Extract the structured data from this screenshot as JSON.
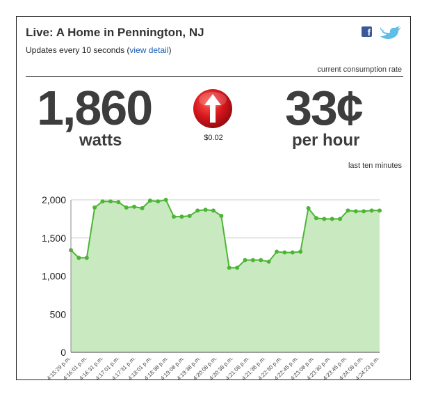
{
  "header": {
    "title": "Live: A Home in Pennington, NJ",
    "updates_prefix": "Updates every 10 seconds (",
    "view_detail_link": "view detail",
    "updates_suffix": ")",
    "facebook_glyph": "f",
    "facebook_icon": "facebook-icon",
    "twitter_icon": "twitter-bird-icon"
  },
  "readout": {
    "rate_label": "current consumption rate",
    "watts_value": "1,860",
    "watts_unit": "watts",
    "trend_icon": "up-arrow-icon",
    "trend_color": "#d4151c",
    "delta": "$0.02",
    "cost_value": "33¢",
    "cost_unit": "per hour"
  },
  "chart_label": "last ten minutes",
  "colors": {
    "line": "#4cb535",
    "fill": "#c9e9c0",
    "grid": "#cccccc",
    "link": "#1a5fb4"
  },
  "chart_data": {
    "type": "area",
    "title": "",
    "xlabel": "",
    "ylabel": "",
    "ylim": [
      0,
      2000
    ],
    "yticks": [
      "0",
      "500",
      "1,000",
      "1,500",
      "2,000"
    ],
    "ytick_values": [
      0,
      500,
      1000,
      1500,
      2000
    ],
    "x_tick_labels": [
      "4:15:29 p.m.",
      "4:16:01 p.m.",
      "4:16:31 p.m.",
      "4:17:01 p.m.",
      "4:17:31 p.m.",
      "4:18:01 p.m.",
      "4:18:38 p.m.",
      "4:19:08 p.m.",
      "4:19:38 p.m.",
      "4:20:08 p.m.",
      "4:20:38 p.m.",
      "4:21:08 p.m.",
      "4:21:38 p.m.",
      "4:22:30 p.m.",
      "4:22:45 p.m.",
      "4:23:08 p.m.",
      "4:23:30 p.m.",
      "4:23:45 p.m.",
      "4:24:08 p.m.",
      "4:24:23 p.m."
    ],
    "values": [
      1340,
      1240,
      1240,
      1900,
      1980,
      1980,
      1970,
      1900,
      1910,
      1890,
      1990,
      1980,
      2000,
      1780,
      1780,
      1790,
      1860,
      1870,
      1860,
      1790,
      1110,
      1110,
      1210,
      1210,
      1210,
      1190,
      1320,
      1310,
      1310,
      1320,
      1890,
      1760,
      1750,
      1750,
      1750,
      1860,
      1850,
      1850,
      1860,
      1860
    ],
    "grid": true,
    "legend": "none"
  }
}
